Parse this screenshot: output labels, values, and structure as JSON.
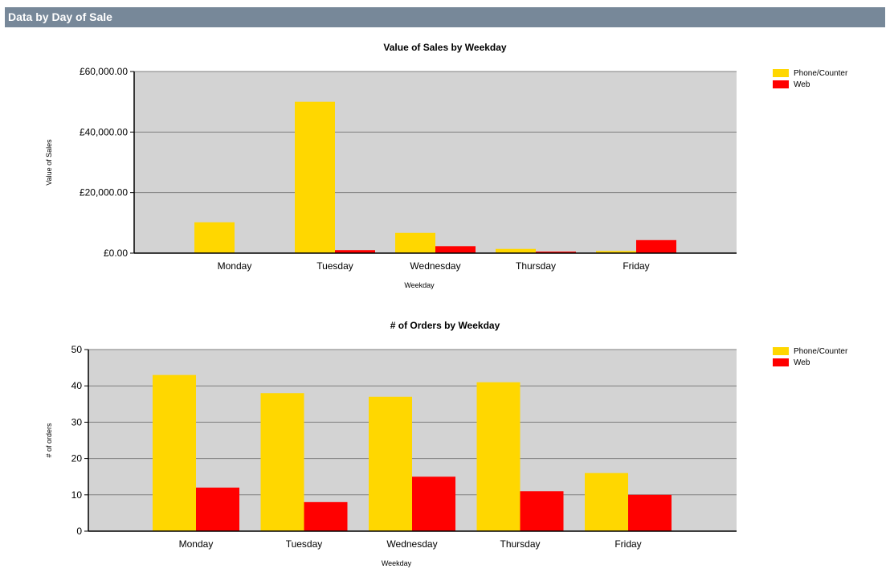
{
  "section_header": "Data by Day of Sale",
  "colors": {
    "header_bg": "#778899",
    "plot_bg": "#d3d3d3",
    "phone": "#ffd700",
    "web": "#ff0000"
  },
  "chart_data": [
    {
      "type": "bar",
      "title": "Value of Sales by Weekday",
      "xlabel": "Weekday",
      "ylabel": "Value of Sales",
      "categories": [
        "Monday",
        "Tuesday",
        "Wednesday",
        "Thursday",
        "Friday"
      ],
      "series": [
        {
          "name": "Phone/Counter",
          "values": [
            10200,
            50000,
            6700,
            1400,
            700
          ]
        },
        {
          "name": "Web",
          "values": [
            0,
            1000,
            2300,
            500,
            4300
          ]
        }
      ],
      "ylim": [
        0,
        60000
      ],
      "yticks": [
        0,
        20000,
        40000,
        60000
      ],
      "ytick_labels": [
        "£0.00",
        "£20,000.00",
        "£40,000.00",
        "£60,000.00"
      ],
      "grid": true,
      "legend_position": "top-right"
    },
    {
      "type": "bar",
      "title": "# of Orders by Weekday",
      "xlabel": "Weekday",
      "ylabel": "# of orders",
      "categories": [
        "Monday",
        "Tuesday",
        "Wednesday",
        "Thursday",
        "Friday"
      ],
      "series": [
        {
          "name": "Phone/Counter",
          "values": [
            43,
            38,
            37,
            41,
            16
          ]
        },
        {
          "name": "Web",
          "values": [
            12,
            8,
            15,
            11,
            10
          ]
        }
      ],
      "ylim": [
        0,
        50
      ],
      "yticks": [
        0,
        10,
        20,
        30,
        40,
        50
      ],
      "ytick_labels": [
        "0",
        "10",
        "20",
        "30",
        "40",
        "50"
      ],
      "grid": true,
      "legend_position": "top-right"
    }
  ]
}
